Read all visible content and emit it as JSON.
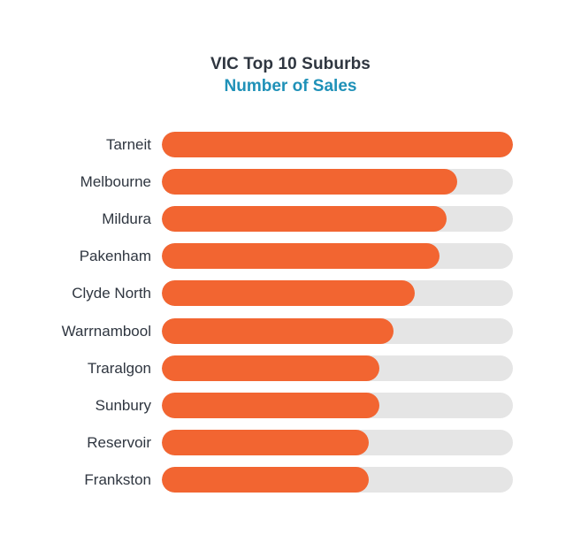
{
  "colors": {
    "bar_fill": "#f26531",
    "bar_track": "#e5e5e5",
    "title_color": "#2f3640",
    "subtitle_color": "#1f91b8"
  },
  "chart_data": {
    "type": "bar",
    "orientation": "horizontal",
    "title": "VIC Top 10 Suburbs",
    "subtitle": "Number of Sales",
    "categories": [
      "Tarneit",
      "Melbourne",
      "Mildura",
      "Pakenham",
      "Clyde North",
      "Warrnambool",
      "Traralgon",
      "Sunbury",
      "Reservoir",
      "Frankston"
    ],
    "values": [
      1.0,
      0.84,
      0.81,
      0.79,
      0.72,
      0.66,
      0.62,
      0.62,
      0.59,
      0.59
    ],
    "value_scale": "fraction of maximum",
    "xlim": [
      0,
      1
    ],
    "grid": false,
    "legend": "none"
  }
}
